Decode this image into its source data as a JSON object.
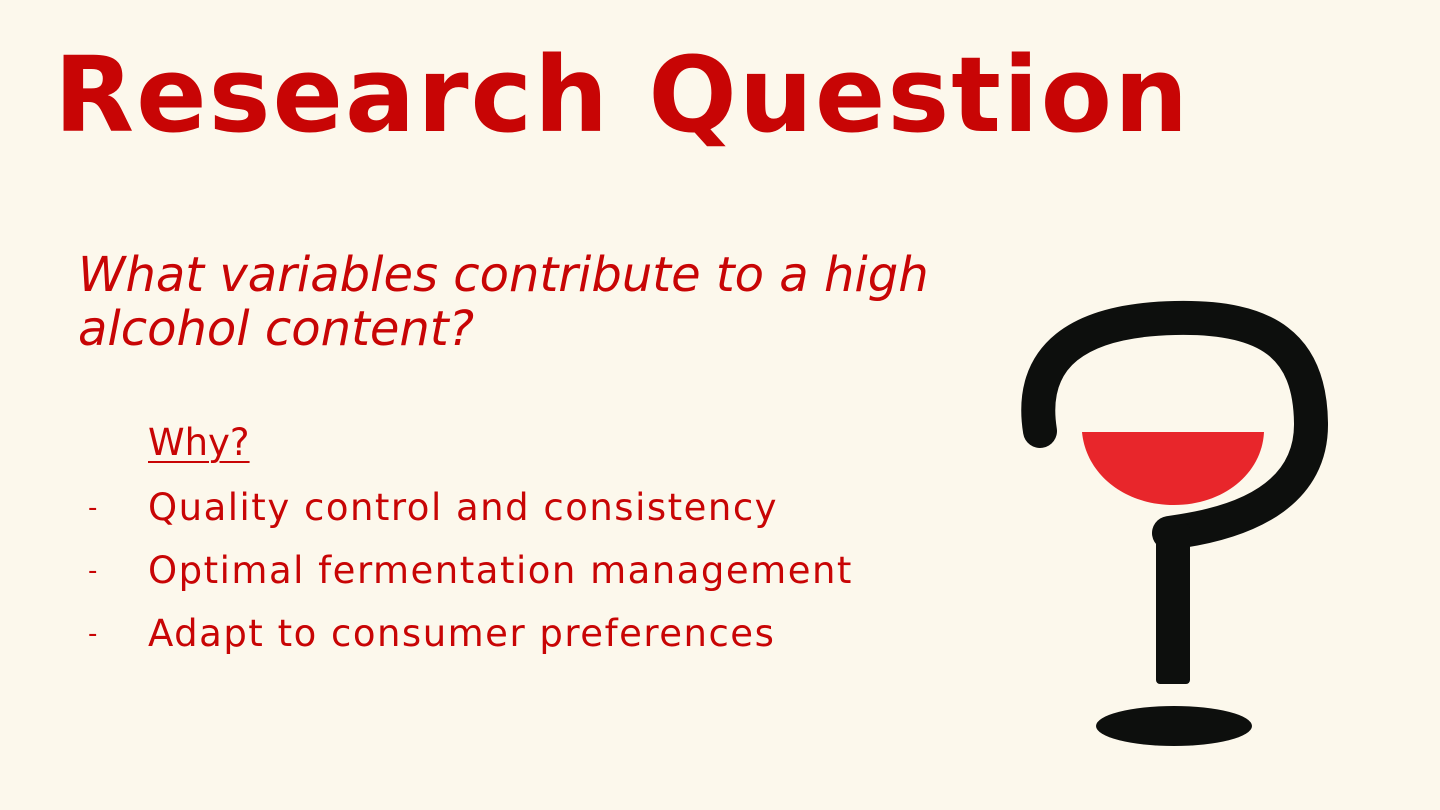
{
  "slide": {
    "title": "Research Question",
    "question": "What variables contribute to a high alcohol content?",
    "why_label": "Why?",
    "reasons": [
      "Quality control and consistency",
      "Optimal fermentation management",
      "Adapt to consumer preferences"
    ],
    "bullet_marker": "-",
    "illustration": "wine-glass-question-mark-icon"
  },
  "colors": {
    "background": "#fcf8ec",
    "text": "#c80505",
    "glass": "#0d0f0d",
    "wine": "#e8262b"
  }
}
